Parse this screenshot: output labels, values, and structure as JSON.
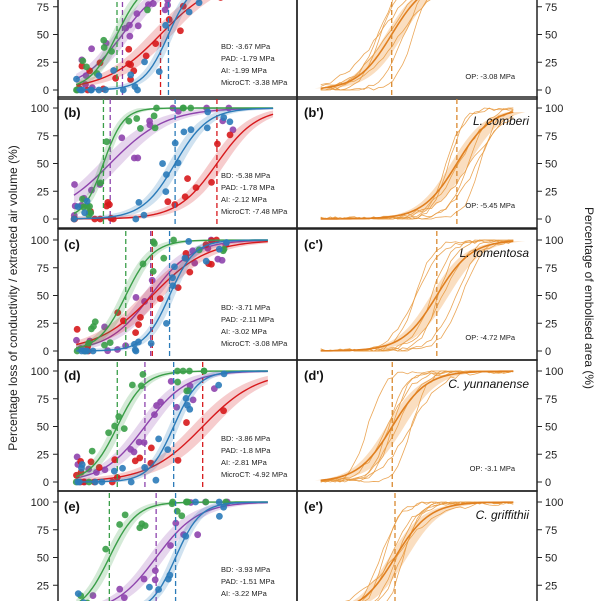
{
  "chart_data": {
    "type": "scatter",
    "description": "Vulnerability curves: percentage loss of conductivity / extracted air volume (left column) and percentage of embolised area from optical method (right column)",
    "left_ylabel": "Percentage loss of conductivity / extracted air volume (%)",
    "right_ylabel": "Percentage of embolised area (%)",
    "yticks": [
      "0",
      "25",
      "50",
      "75",
      "100"
    ],
    "ylim": [
      0,
      100
    ],
    "method_colors": {
      "BD": "#2b7bb9",
      "PAD": "#3a9e48",
      "AI": "#8e44ad",
      "MicroCT": "#d7191c",
      "OP": "#f0a04b"
    },
    "panels_left": [
      {
        "label": "",
        "annotations": [
          "BD: -3.67 MPa",
          "PAD: -1.79 MPa",
          "AI: -1.99 MPa",
          "MicroCT: -3.38 MPa"
        ],
        "p50": {
          "BD": -3.67,
          "PAD": -1.79,
          "AI": -1.99,
          "MicroCT": -3.38
        }
      },
      {
        "label": "(b)",
        "annotations": [
          "BD: -5.38 MPa",
          "PAD: -1.78 MPa",
          "AI: -2.12 MPa",
          "MicroCT: -7.48 MPa"
        ],
        "p50": {
          "BD": -5.38,
          "PAD": -1.78,
          "AI": -2.12,
          "MicroCT": -7.48
        }
      },
      {
        "label": "(c)",
        "annotations": [
          "BD: -3.71 MPa",
          "PAD: -2.11 MPa",
          "AI: -3.02 MPa",
          "MicroCT: -3.08 MPa"
        ],
        "p50": {
          "BD": -3.71,
          "PAD": -2.11,
          "AI": -3.02,
          "MicroCT": -3.08
        }
      },
      {
        "label": "(d)",
        "annotations": [
          "BD: -3.86 MPa",
          "PAD: -1.8 MPa",
          "AI: -2.81 MPa",
          "MicroCT: -4.92 MPa"
        ],
        "p50": {
          "BD": -3.86,
          "PAD": -1.8,
          "AI": -2.81,
          "MicroCT": -4.92
        }
      },
      {
        "label": "(e)",
        "annotations": [
          "BD: -3.93 MPa",
          "PAD: -1.51 MPa",
          "AI: -3.22 MPa"
        ],
        "p50": {
          "BD": -3.93,
          "PAD": -1.51,
          "AI": -3.22
        }
      }
    ],
    "panels_right": [
      {
        "label": "",
        "species": "",
        "annotation": "OP: -3.08 MPa",
        "p50": -3.08
      },
      {
        "label": "(b')",
        "species": "L. comberi",
        "annotation": "OP: -5.45 MPa",
        "p50": -5.45
      },
      {
        "label": "(c')",
        "species": "L. tomentosa",
        "annotation": "OP: -4.72 MPa",
        "p50": -4.72
      },
      {
        "label": "(d')",
        "species": "C. yunnanense",
        "annotation": "OP: -3.1 MPa",
        "p50": -3.1
      },
      {
        "label": "(e')",
        "species": "C. griffithii",
        "annotation": "",
        "p50": null
      }
    ]
  }
}
